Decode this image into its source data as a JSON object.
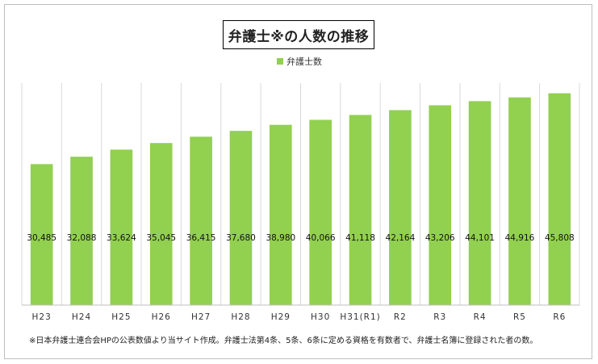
{
  "chart_data": {
    "type": "bar",
    "title": "弁護士※の人数の推移",
    "legend": {
      "position": "top",
      "entries": [
        "弁護士数"
      ]
    },
    "series": [
      {
        "name": "弁護士数",
        "color": "#92d050",
        "values": [
          30485,
          32088,
          33624,
          35045,
          36415,
          37680,
          38980,
          40066,
          41118,
          42164,
          43206,
          44101,
          44916,
          45808
        ]
      }
    ],
    "categories": [
      "H23",
      "H24",
      "H25",
      "H26",
      "H27",
      "H28",
      "H29",
      "H30",
      "H31(R1)",
      "R2",
      "R3",
      "R4",
      "R5",
      "R6"
    ],
    "data_labels": [
      "30,485",
      "32,088",
      "33,624",
      "35,045",
      "36,415",
      "37,680",
      "38,980",
      "40,066",
      "41,118",
      "42,164",
      "43,206",
      "44,101",
      "44,916",
      "45,808"
    ],
    "xlabel": "",
    "ylabel": "",
    "ylim": [
      0,
      48000
    ],
    "y_axis_visible": false,
    "grid": "vertical"
  },
  "footnote": "※日本弁護士連合会HPの公表数値より当サイト作成。弁護士法第4条、5条、6条に定める資格を有数者で、弁護士名簿に登録された者の数。"
}
